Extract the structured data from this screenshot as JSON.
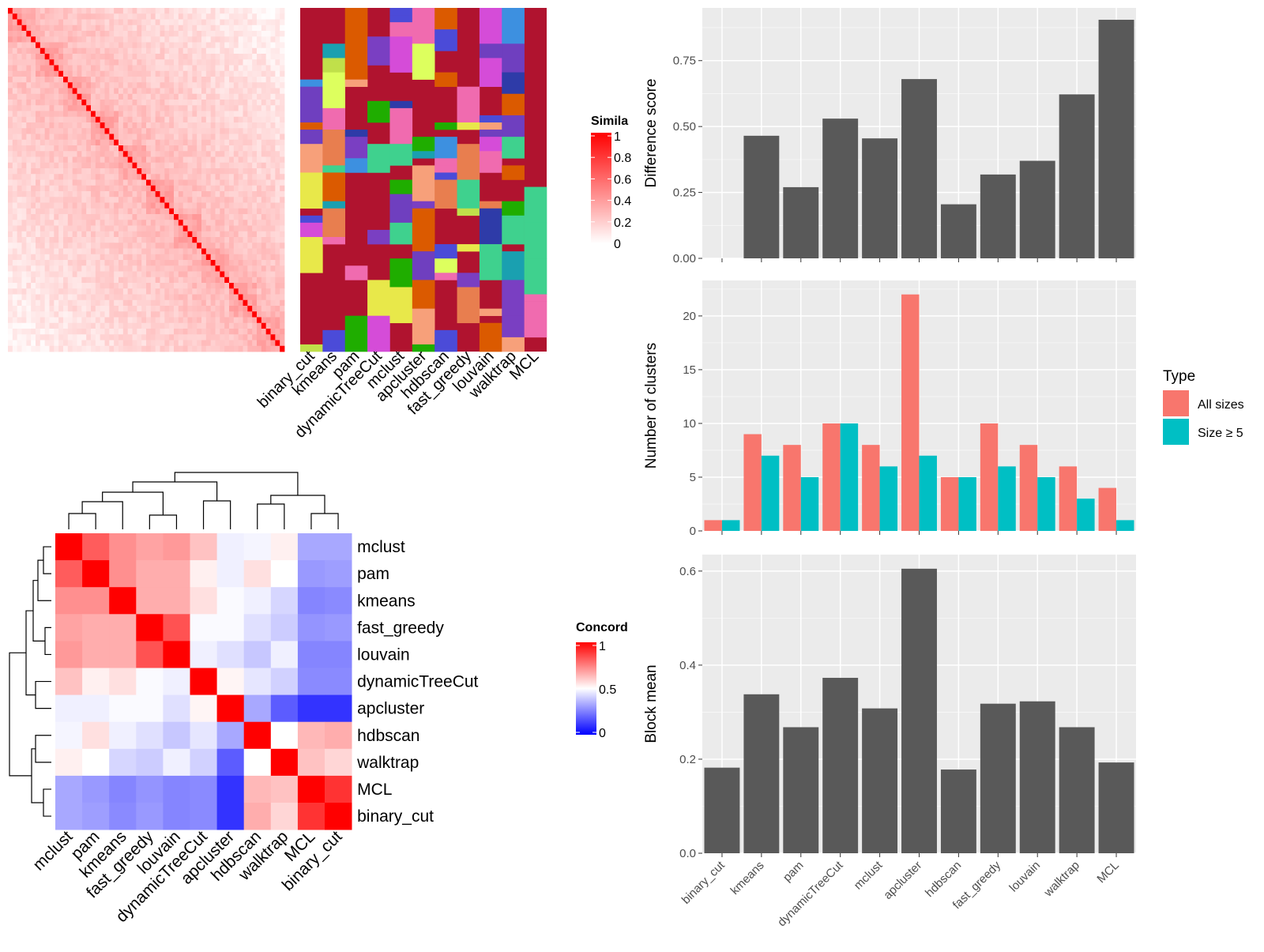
{
  "top_legend": {
    "title": "Simila",
    "ticks": [
      "1",
      "0.8",
      "0.6",
      "0.4",
      "0.2",
      "0"
    ]
  },
  "bottom_legend": {
    "title": "Concord",
    "ticks": [
      "1",
      "0.5",
      "0"
    ]
  },
  "colors": {
    "bar": "#595959",
    "all_sizes": "#F8766D",
    "size_ge_5": "#00BFC4",
    "panel_bg": "#EBEBEB",
    "grid": "#FFFFFF",
    "heat_high": "#FF0000",
    "heat_mid": "#FFFFFF",
    "heat_low": "#0000FF",
    "membership_bg": "#B0132F"
  },
  "chart_data": [
    {
      "type": "heatmap",
      "panel": "similarity-matrix-with-cluster-memberships",
      "legend_title": "Simila",
      "value_range": [
        0,
        1
      ],
      "column_labels": [
        "binary_cut",
        "kmeans",
        "pam",
        "dynamicTreeCut",
        "mclust",
        "apcluster",
        "hdbscan",
        "fast_greedy",
        "louvain",
        "walktrap",
        "MCL"
      ]
    },
    {
      "type": "heatmap",
      "panel": "method-concordance",
      "legend_title": "Concord",
      "value_range": [
        0,
        1
      ],
      "rows": [
        "mclust",
        "pam",
        "kmeans",
        "fast_greedy",
        "louvain",
        "dynamicTreeCut",
        "apcluster",
        "hdbscan",
        "walktrap",
        "MCL",
        "binary_cut"
      ],
      "columns": [
        "mclust",
        "pam",
        "kmeans",
        "fast_greedy",
        "louvain",
        "dynamicTreeCut",
        "apcluster",
        "hdbscan",
        "walktrap",
        "MCL",
        "binary_cut"
      ],
      "values": [
        [
          1.0,
          0.82,
          0.72,
          0.68,
          0.7,
          0.62,
          0.47,
          0.48,
          0.53,
          0.33,
          0.33
        ],
        [
          0.82,
          1.0,
          0.72,
          0.66,
          0.66,
          0.53,
          0.47,
          0.56,
          0.5,
          0.3,
          0.31
        ],
        [
          0.72,
          0.72,
          1.0,
          0.66,
          0.66,
          0.56,
          0.49,
          0.47,
          0.42,
          0.26,
          0.27
        ],
        [
          0.68,
          0.66,
          0.66,
          1.0,
          0.84,
          0.49,
          0.49,
          0.44,
          0.4,
          0.29,
          0.3
        ],
        [
          0.7,
          0.66,
          0.66,
          0.84,
          1.0,
          0.47,
          0.44,
          0.39,
          0.47,
          0.26,
          0.26
        ],
        [
          0.62,
          0.53,
          0.56,
          0.49,
          0.47,
          1.0,
          0.52,
          0.45,
          0.41,
          0.27,
          0.27
        ],
        [
          0.47,
          0.47,
          0.49,
          0.49,
          0.44,
          0.52,
          1.0,
          0.33,
          0.18,
          0.1,
          0.1
        ],
        [
          0.48,
          0.56,
          0.47,
          0.44,
          0.39,
          0.45,
          0.33,
          1.0,
          0.5,
          0.64,
          0.66
        ],
        [
          0.53,
          0.5,
          0.42,
          0.4,
          0.47,
          0.41,
          0.18,
          0.5,
          1.0,
          0.62,
          0.58
        ],
        [
          0.33,
          0.3,
          0.26,
          0.29,
          0.26,
          0.27,
          0.1,
          0.64,
          0.62,
          1.0,
          0.9
        ],
        [
          0.33,
          0.31,
          0.27,
          0.3,
          0.26,
          0.27,
          0.1,
          0.66,
          0.58,
          0.9,
          1.0
        ]
      ]
    },
    {
      "type": "bar",
      "panel": "difference-score",
      "categories": [
        "binary_cut",
        "kmeans",
        "pam",
        "dynamicTreeCut",
        "mclust",
        "apcluster",
        "hdbscan",
        "fast_greedy",
        "louvain",
        "walktrap",
        "MCL"
      ],
      "values": [
        0.0,
        0.465,
        0.27,
        0.53,
        0.455,
        0.68,
        0.205,
        0.318,
        0.37,
        0.622,
        0.905
      ],
      "ylabel": "Difference score",
      "ylim": [
        0,
        0.95
      ],
      "yticks": [
        "0.00",
        "0.25",
        "0.50",
        "0.75"
      ],
      "show_x_labels": false
    },
    {
      "type": "bar",
      "panel": "number-of-clusters",
      "categories": [
        "binary_cut",
        "kmeans",
        "pam",
        "dynamicTreeCut",
        "mclust",
        "apcluster",
        "hdbscan",
        "fast_greedy",
        "louvain",
        "walktrap",
        "MCL"
      ],
      "series": [
        {
          "name": "All sizes",
          "values": [
            1,
            9,
            8,
            10,
            8,
            22,
            5,
            10,
            8,
            6,
            4
          ]
        },
        {
          "name": "Size ≥ 5",
          "values": [
            1,
            7,
            5,
            10,
            6,
            7,
            5,
            6,
            5,
            3,
            1
          ]
        }
      ],
      "ylabel": "Number of clusters",
      "ylim": [
        0,
        23.3
      ],
      "yticks": [
        "0",
        "5",
        "10",
        "15",
        "20"
      ],
      "legend": {
        "title": "Type",
        "position": "right"
      },
      "show_x_labels": false
    },
    {
      "type": "bar",
      "panel": "block-mean",
      "categories": [
        "binary_cut",
        "kmeans",
        "pam",
        "dynamicTreeCut",
        "mclust",
        "apcluster",
        "hdbscan",
        "fast_greedy",
        "louvain",
        "walktrap",
        "MCL"
      ],
      "values": [
        0.182,
        0.338,
        0.268,
        0.373,
        0.308,
        0.605,
        0.178,
        0.318,
        0.323,
        0.268,
        0.193
      ],
      "ylabel": "Block mean",
      "ylim": [
        0,
        0.635
      ],
      "yticks": [
        "0.0",
        "0.2",
        "0.4",
        "0.6"
      ],
      "show_x_labels": true
    }
  ]
}
